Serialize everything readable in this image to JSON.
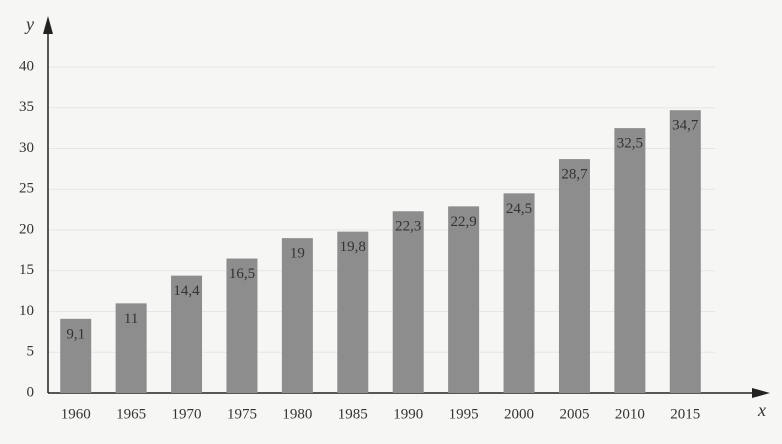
{
  "chart_data": {
    "type": "bar",
    "x_label": "x",
    "y_label": "y",
    "categories": [
      "1960",
      "1965",
      "1970",
      "1975",
      "1980",
      "1985",
      "1990",
      "1995",
      "2000",
      "2005",
      "2010",
      "2015"
    ],
    "values": [
      9.1,
      11,
      14.4,
      16.5,
      19,
      19.8,
      22.3,
      22.9,
      24.5,
      28.7,
      32.5,
      34.7
    ],
    "value_labels": [
      "9,1",
      "11",
      "14,4",
      "16,5",
      "19",
      "19,8",
      "22,3",
      "22,9",
      "24,5",
      "28,7",
      "32,5",
      "34,7"
    ],
    "color": "#8d8d8d",
    "ylim": [
      0,
      40
    ],
    "yticks": [
      0,
      5,
      10,
      15,
      20,
      25,
      30,
      35,
      40
    ],
    "grid": true
  }
}
